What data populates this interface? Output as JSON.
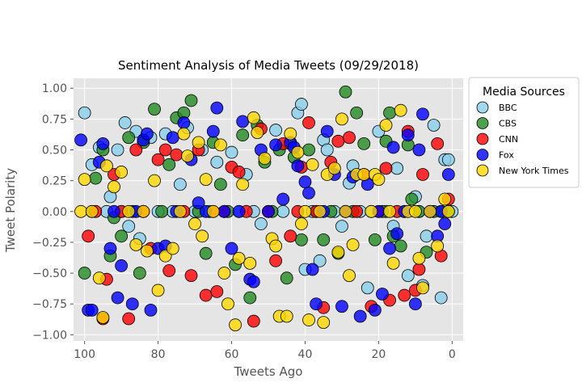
{
  "chart_data": {
    "type": "scatter",
    "title": "Sentiment Analysis of Media Tweets (09/29/2018)",
    "xlabel": "Tweets Ago",
    "ylabel": "Tweet Polarity",
    "xlim": [
      103,
      -3
    ],
    "ylim": [
      -1.05,
      1.08
    ],
    "x_ticks": [
      100,
      80,
      60,
      40,
      20,
      0
    ],
    "y_ticks": [
      1.0,
      0.75,
      0.5,
      0.25,
      0.0,
      -0.25,
      -0.5,
      -0.75,
      -1.0
    ],
    "y_tick_labels": [
      "1.00",
      "0.75",
      "0.50",
      "0.25",
      "0.00",
      "−0.25",
      "−0.50",
      "−0.75",
      "−1.00"
    ],
    "grid": true,
    "legend_title": "Media Sources",
    "legend_position": "outside-right",
    "series": [
      {
        "name": "BBC",
        "color": "#87CEEB",
        "points": [
          [
            100,
            0.8
          ],
          [
            98,
            0.38
          ],
          [
            96,
            0.52
          ],
          [
            94,
            0.0
          ],
          [
            93,
            0.12
          ],
          [
            91,
            0.5
          ],
          [
            90,
            0.0
          ],
          [
            89,
            0.72
          ],
          [
            88,
            -0.12
          ],
          [
            86,
            0.65
          ],
          [
            85,
            -0.22
          ],
          [
            84,
            0.0
          ],
          [
            82,
            0.6
          ],
          [
            80,
            0.0
          ],
          [
            78,
            0.63
          ],
          [
            76,
            0.0
          ],
          [
            74,
            0.22
          ],
          [
            72,
            0.68
          ],
          [
            70,
            0.0
          ],
          [
            68,
            0.5
          ],
          [
            66,
            0.0
          ],
          [
            64,
            0.4
          ],
          [
            62,
            0.0
          ],
          [
            60,
            0.48
          ],
          [
            58,
            0.0
          ],
          [
            56,
            0.3
          ],
          [
            54,
            0.0
          ],
          [
            52,
            -0.1
          ],
          [
            50,
            0.0
          ],
          [
            48,
            0.66
          ],
          [
            46,
            0.0
          ],
          [
            44,
            0.55
          ],
          [
            42,
            0.8
          ],
          [
            41,
            0.87
          ],
          [
            40,
            -0.47
          ],
          [
            38,
            0.0
          ],
          [
            36,
            -0.4
          ],
          [
            35,
            0.58
          ],
          [
            34,
            0.5
          ],
          [
            32,
            0.0
          ],
          [
            30,
            -0.12
          ],
          [
            28,
            0.23
          ],
          [
            27,
            0.37
          ],
          [
            25,
            0.0
          ],
          [
            23,
            -0.62
          ],
          [
            22,
            0.0
          ],
          [
            20,
            0.65
          ],
          [
            18,
            0.0
          ],
          [
            16,
            -0.12
          ],
          [
            15,
            0.35
          ],
          [
            13,
            0.0
          ],
          [
            12,
            -0.52
          ],
          [
            10,
            0.12
          ],
          [
            9,
            0.0
          ],
          [
            8,
            -0.6
          ],
          [
            7,
            -0.2
          ],
          [
            5,
            0.7
          ],
          [
            3,
            -0.7
          ],
          [
            2,
            0.42
          ],
          [
            1,
            0.42
          ],
          [
            0,
            0.0
          ]
        ]
      },
      {
        "name": "CBS",
        "color": "#228B22",
        "points": [
          [
            100,
            -0.5
          ],
          [
            98,
            0.0
          ],
          [
            97,
            0.27
          ],
          [
            95,
            0.5
          ],
          [
            93,
            -0.36
          ],
          [
            92,
            -0.05
          ],
          [
            90,
            -0.2
          ],
          [
            88,
            0.6
          ],
          [
            87,
            0.0
          ],
          [
            85,
            -0.5
          ],
          [
            84,
            0.56
          ],
          [
            81,
            0.83
          ],
          [
            79,
            0.0
          ],
          [
            77,
            0.38
          ],
          [
            75,
            0.76
          ],
          [
            73,
            0.8
          ],
          [
            71,
            0.9
          ],
          [
            69,
            0.0
          ],
          [
            67,
            -0.34
          ],
          [
            65,
            0.56
          ],
          [
            63,
            0.22
          ],
          [
            61,
            0.0
          ],
          [
            59,
            -0.43
          ],
          [
            57,
            0.62
          ],
          [
            55,
            -0.7
          ],
          [
            53,
            0.7
          ],
          [
            51,
            0.4
          ],
          [
            49,
            0.0
          ],
          [
            47,
            0.5
          ],
          [
            45,
            -0.54
          ],
          [
            43,
            0.44
          ],
          [
            41,
            -0.23
          ],
          [
            39,
            0.5
          ],
          [
            37,
            0.0
          ],
          [
            35,
            -0.23
          ],
          [
            33,
            0.0
          ],
          [
            31,
            -0.34
          ],
          [
            29,
            0.97
          ],
          [
            27,
            0.0
          ],
          [
            26,
            0.8
          ],
          [
            24,
            0.55
          ],
          [
            21,
            -0.23
          ],
          [
            19,
            0.0
          ],
          [
            18,
            0.57
          ],
          [
            17,
            0.8
          ],
          [
            16,
            -0.2
          ],
          [
            14,
            -0.28
          ],
          [
            12,
            0.54
          ],
          [
            11,
            0.1
          ],
          [
            9,
            0.0
          ],
          [
            7,
            -0.33
          ],
          [
            5,
            0.0
          ],
          [
            3,
            0.0
          ],
          [
            1,
            0.0
          ]
        ]
      },
      {
        "name": "CNN",
        "color": "#FF0000",
        "points": [
          [
            99,
            -0.2
          ],
          [
            97,
            0.0
          ],
          [
            95,
            -0.87
          ],
          [
            94,
            -0.55
          ],
          [
            92,
            0.3
          ],
          [
            90,
            0.0
          ],
          [
            88,
            -0.87
          ],
          [
            86,
            0.5
          ],
          [
            84,
            0.0
          ],
          [
            82,
            -0.3
          ],
          [
            80,
            0.42
          ],
          [
            78,
            0.5
          ],
          [
            77,
            -0.48
          ],
          [
            75,
            0.46
          ],
          [
            73,
            0.0
          ],
          [
            71,
            -0.52
          ],
          [
            69,
            0.5
          ],
          [
            67,
            -0.68
          ],
          [
            65,
            0.0
          ],
          [
            64,
            -0.65
          ],
          [
            62,
            0.0
          ],
          [
            60,
            0.36
          ],
          [
            58,
            0.32
          ],
          [
            56,
            0.0
          ],
          [
            54,
            -0.89
          ],
          [
            52,
            0.67
          ],
          [
            50,
            0.0
          ],
          [
            48,
            -0.4
          ],
          [
            46,
            0.55
          ],
          [
            44,
            -0.2
          ],
          [
            42,
            0.0
          ],
          [
            41,
            0.36
          ],
          [
            39,
            0.72
          ],
          [
            37,
            0.0
          ],
          [
            35,
            -0.78
          ],
          [
            33,
            0.4
          ],
          [
            31,
            0.57
          ],
          [
            29,
            0.0
          ],
          [
            28,
            0.6
          ],
          [
            26,
            0.0
          ],
          [
            24,
            0.3
          ],
          [
            22,
            -0.77
          ],
          [
            20,
            0.0
          ],
          [
            18,
            0.35
          ],
          [
            17,
            -0.72
          ],
          [
            15,
            0.0
          ],
          [
            13,
            -0.68
          ],
          [
            12,
            0.65
          ],
          [
            10,
            -0.64
          ],
          [
            9,
            -0.47
          ],
          [
            8,
            0.3
          ],
          [
            6,
            0.0
          ],
          [
            4,
            0.55
          ],
          [
            3,
            -0.36
          ],
          [
            1,
            0.1
          ]
        ]
      },
      {
        "name": "Fox",
        "color": "#0000FF",
        "points": [
          [
            101,
            0.58
          ],
          [
            99,
            -0.8
          ],
          [
            98,
            -0.8
          ],
          [
            96,
            0.4
          ],
          [
            95,
            0.55
          ],
          [
            93,
            -0.3
          ],
          [
            92,
            0.0
          ],
          [
            91,
            -0.7
          ],
          [
            90,
            -0.44
          ],
          [
            87,
            -0.75
          ],
          [
            86,
            0.0
          ],
          [
            84,
            0.58
          ],
          [
            83,
            0.63
          ],
          [
            82,
            -0.8
          ],
          [
            80,
            -0.3
          ],
          [
            78,
            -0.28
          ],
          [
            76,
            0.6
          ],
          [
            75,
            0.0
          ],
          [
            73,
            0.72
          ],
          [
            71,
            0.42
          ],
          [
            69,
            0.07
          ],
          [
            67,
            0.0
          ],
          [
            65,
            0.65
          ],
          [
            64,
            0.84
          ],
          [
            62,
            0.0
          ],
          [
            60,
            -0.3
          ],
          [
            58,
            0.0
          ],
          [
            57,
            0.73
          ],
          [
            55,
            -0.55
          ],
          [
            54,
            -0.57
          ],
          [
            52,
            0.5
          ],
          [
            50,
            0.0
          ],
          [
            48,
            0.54
          ],
          [
            46,
            0.1
          ],
          [
            44,
            0.56
          ],
          [
            43,
            0.52
          ],
          [
            42,
            0.37
          ],
          [
            40,
            0.24
          ],
          [
            39,
            0.15
          ],
          [
            38,
            -0.47
          ],
          [
            37,
            -0.75
          ],
          [
            35,
            0.0
          ],
          [
            34,
            0.65
          ],
          [
            32,
            0.3
          ],
          [
            30,
            -0.77
          ],
          [
            29,
            0.0
          ],
          [
            27,
            0.28
          ],
          [
            25,
            -0.85
          ],
          [
            23,
            0.22
          ],
          [
            21,
            -0.8
          ],
          [
            20,
            0.0
          ],
          [
            19,
            -0.67
          ],
          [
            17,
            -0.3
          ],
          [
            16,
            0.52
          ],
          [
            15,
            -0.18
          ],
          [
            13,
            0.0
          ],
          [
            12,
            0.62
          ],
          [
            10,
            -0.75
          ],
          [
            9,
            0.5
          ],
          [
            8,
            0.79
          ],
          [
            6,
            0.0
          ],
          [
            4,
            -0.2
          ],
          [
            3,
            0.0
          ],
          [
            2,
            -0.1
          ],
          [
            1,
            0.3
          ]
        ]
      },
      {
        "name": "New York Times",
        "color": "#FFD700",
        "points": [
          [
            101,
            0.0
          ],
          [
            100,
            0.26
          ],
          [
            98,
            0.0
          ],
          [
            96,
            -0.54
          ],
          [
            95,
            -0.86
          ],
          [
            94,
            0.37
          ],
          [
            92,
            0.2
          ],
          [
            90,
            0.32
          ],
          [
            88,
            0.0
          ],
          [
            86,
            -0.27
          ],
          [
            84,
            0.0
          ],
          [
            83,
            -0.32
          ],
          [
            81,
            0.25
          ],
          [
            80,
            -0.64
          ],
          [
            78,
            -0.36
          ],
          [
            76,
            -0.3
          ],
          [
            74,
            0.0
          ],
          [
            73,
            0.63
          ],
          [
            72,
            0.45
          ],
          [
            70,
            -0.1
          ],
          [
            69,
            0.56
          ],
          [
            68,
            -0.2
          ],
          [
            67,
            0.26
          ],
          [
            65,
            0.0
          ],
          [
            63,
            0.54
          ],
          [
            62,
            -0.5
          ],
          [
            61,
            -0.75
          ],
          [
            59,
            -0.92
          ],
          [
            58,
            -0.38
          ],
          [
            57,
            0.22
          ],
          [
            55,
            -0.42
          ],
          [
            54,
            0.76
          ],
          [
            53,
            0.64
          ],
          [
            51,
            0.43
          ],
          [
            49,
            -0.22
          ],
          [
            48,
            -0.28
          ],
          [
            47,
            -0.85
          ],
          [
            45,
            -0.85
          ],
          [
            44,
            0.63
          ],
          [
            42,
            0.48
          ],
          [
            41,
            -0.1
          ],
          [
            40,
            0.0
          ],
          [
            39,
            -0.88
          ],
          [
            38,
            0.38
          ],
          [
            36,
            0.0
          ],
          [
            35,
            -0.9
          ],
          [
            34,
            0.3
          ],
          [
            32,
            0.35
          ],
          [
            31,
            -0.33
          ],
          [
            30,
            0.75
          ],
          [
            29,
            0.0
          ],
          [
            28,
            -0.52
          ],
          [
            27,
            -0.27
          ],
          [
            26,
            0.3
          ],
          [
            24,
            0.3
          ],
          [
            22,
            0.0
          ],
          [
            21,
            0.3
          ],
          [
            20,
            0.26
          ],
          [
            18,
            0.7
          ],
          [
            17,
            0.0
          ],
          [
            16,
            -0.42
          ],
          [
            14,
            0.82
          ],
          [
            12,
            0.0
          ],
          [
            10,
            0.0
          ],
          [
            9,
            -0.38
          ],
          [
            8,
            -0.62
          ],
          [
            6,
            0.0
          ],
          [
            4,
            -0.28
          ],
          [
            2,
            0.1
          ],
          [
            1,
            0.0
          ]
        ]
      }
    ]
  }
}
